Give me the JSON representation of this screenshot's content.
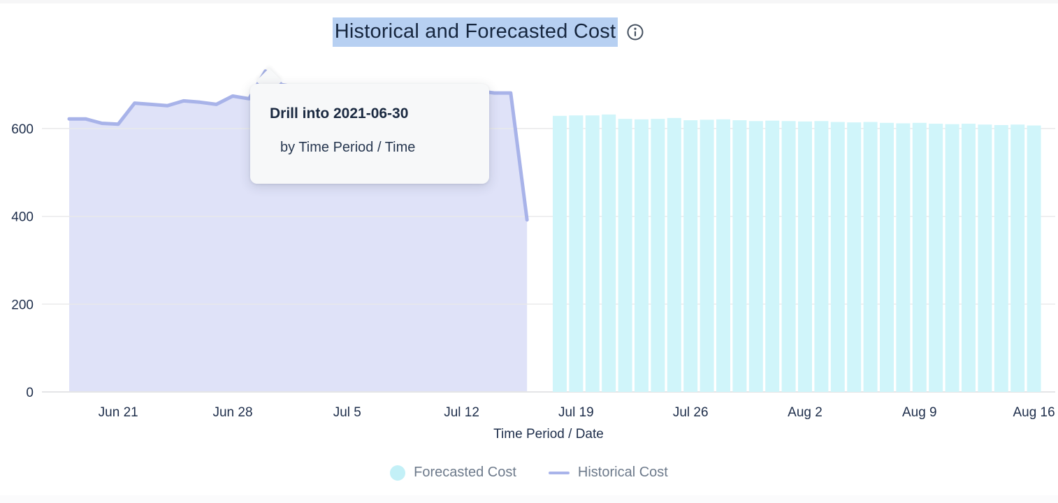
{
  "header": {
    "title": "Historical and Forecasted Cost",
    "title_highlight_color": "#b7d0f2",
    "info_icon": "info-icon"
  },
  "tooltip": {
    "title": "Drill into 2021-06-30",
    "subtitle": "by Time Period / Time"
  },
  "axis": {
    "xlabel": "Time Period / Date"
  },
  "legend": [
    {
      "label": "Forecasted Cost",
      "swatch": "circle",
      "color": "#c3f0f7"
    },
    {
      "label": "Historical Cost",
      "swatch": "line",
      "color": "#a9b4ea"
    }
  ],
  "chart_data": {
    "type": "area+bar",
    "title": "Historical and Forecasted Cost",
    "xlabel": "Time Period / Date",
    "ylabel": "",
    "ylim": [
      0,
      760
    ],
    "yticks": [
      0,
      200,
      400,
      600
    ],
    "xticks": [
      "Jun 21",
      "Jun 28",
      "Jul 5",
      "Jul 12",
      "Jul 19",
      "Jul 26",
      "Aug 2",
      "Aug 9",
      "Aug 16"
    ],
    "xtick_dates": [
      "2021-06-21",
      "2021-06-28",
      "2021-07-05",
      "2021-07-12",
      "2021-07-19",
      "2021-07-26",
      "2021-08-02",
      "2021-08-09",
      "2021-08-16"
    ],
    "x_start_date": "2021-06-18",
    "grid": true,
    "legend_position": "bottom",
    "series": [
      {
        "name": "Historical Cost",
        "type": "area",
        "line_color": "#a8b3e9",
        "fill_color": "#dfe2f8",
        "dates": [
          "2021-06-18",
          "2021-06-19",
          "2021-06-20",
          "2021-06-21",
          "2021-06-22",
          "2021-06-23",
          "2021-06-24",
          "2021-06-25",
          "2021-06-26",
          "2021-06-27",
          "2021-06-28",
          "2021-06-29",
          "2021-06-30",
          "2021-07-01",
          "2021-07-02",
          "2021-07-03",
          "2021-07-04",
          "2021-07-05",
          "2021-07-06",
          "2021-07-07",
          "2021-07-08",
          "2021-07-09",
          "2021-07-10",
          "2021-07-11",
          "2021-07-12",
          "2021-07-13",
          "2021-07-14",
          "2021-07-15",
          "2021-07-16"
        ],
        "values": [
          622,
          622,
          612,
          610,
          658,
          655,
          652,
          663,
          660,
          655,
          674,
          668,
          731,
          700,
          694,
          697,
          692,
          695,
          690,
          693,
          688,
          691,
          686,
          689,
          684,
          686,
          681,
          681,
          392
        ]
      },
      {
        "name": "Forecasted Cost",
        "type": "bar",
        "color": "#d0f5fa",
        "dates": [
          "2021-07-18",
          "2021-07-19",
          "2021-07-20",
          "2021-07-21",
          "2021-07-22",
          "2021-07-23",
          "2021-07-24",
          "2021-07-25",
          "2021-07-26",
          "2021-07-27",
          "2021-07-28",
          "2021-07-29",
          "2021-07-30",
          "2021-07-31",
          "2021-08-01",
          "2021-08-02",
          "2021-08-03",
          "2021-08-04",
          "2021-08-05",
          "2021-08-06",
          "2021-08-07",
          "2021-08-08",
          "2021-08-09",
          "2021-08-10",
          "2021-08-11",
          "2021-08-12",
          "2021-08-13",
          "2021-08-14",
          "2021-08-15",
          "2021-08-16"
        ],
        "values": [
          629,
          630,
          630,
          632,
          622,
          621,
          622,
          624,
          619,
          620,
          621,
          619,
          617,
          618,
          617,
          616,
          617,
          615,
          614,
          615,
          613,
          612,
          613,
          611,
          610,
          611,
          609,
          608,
          609,
          607
        ]
      }
    ]
  }
}
